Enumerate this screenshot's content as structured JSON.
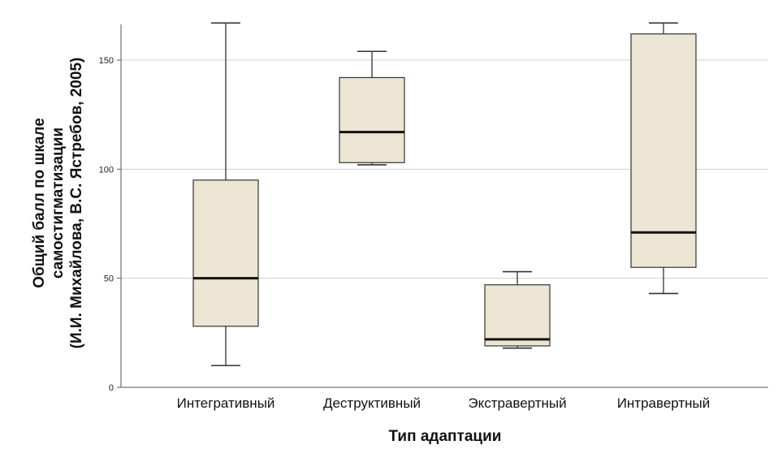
{
  "chart_data": {
    "type": "box",
    "xlabel": "Тип адаптации",
    "ylabel_lines": [
      "Общий балл по шкале",
      "самостигматизации",
      "(И.И. Михайлова, В.С. Ястребов, 2005)"
    ],
    "ylim": [
      0,
      168
    ],
    "yticks": [
      0,
      50,
      100,
      150
    ],
    "grid": true,
    "categories": [
      "Интегративный",
      "Деструктивный",
      "Экстравертный",
      "Интравертный"
    ],
    "boxes": [
      {
        "category": "Интегративный",
        "min": 10,
        "q1": 28,
        "median": 50,
        "q3": 95,
        "max": 167
      },
      {
        "category": "Деструктивный",
        "min": 102,
        "q1": 103,
        "median": 117,
        "q3": 142,
        "max": 154
      },
      {
        "category": "Экстравертный",
        "min": 18,
        "q1": 19,
        "median": 22,
        "q3": 47,
        "max": 53
      },
      {
        "category": "Интравертный",
        "min": 43,
        "q1": 55,
        "median": 71,
        "q3": 162,
        "max": 167
      }
    ],
    "colors": {
      "box_fill": "#ece5d3",
      "box_stroke": "#333333",
      "grid": "#d0d0d0",
      "axis": "#555555"
    }
  }
}
